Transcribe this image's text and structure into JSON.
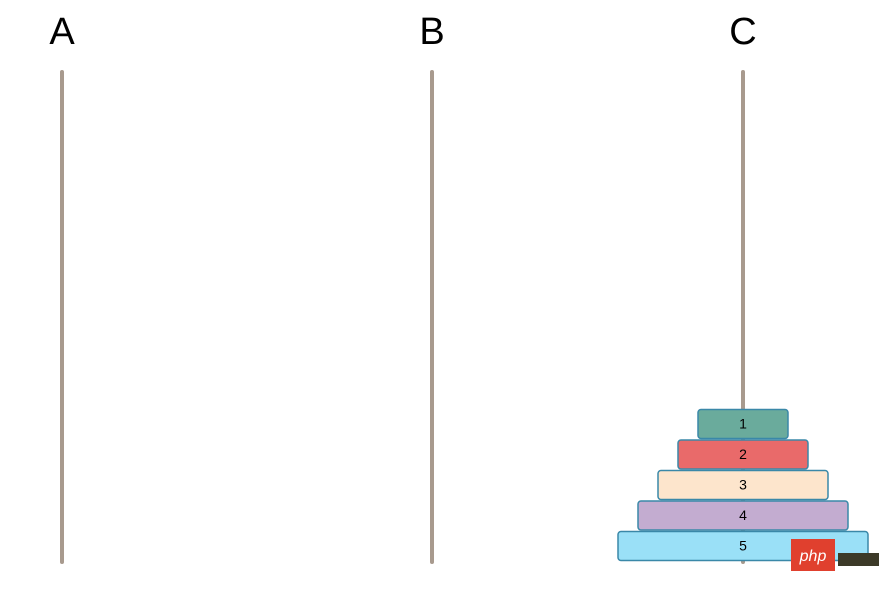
{
  "pegs": [
    {
      "label": "A",
      "disks": []
    },
    {
      "label": "B",
      "disks": []
    },
    {
      "label": "C",
      "disks": [
        1,
        2,
        3,
        4,
        5
      ]
    }
  ],
  "disk_colors": [
    "#6aab9c",
    "#e96a6a",
    "#fde5cc",
    "#c3acd0",
    "#9ae0f7"
  ],
  "watermark": "php"
}
